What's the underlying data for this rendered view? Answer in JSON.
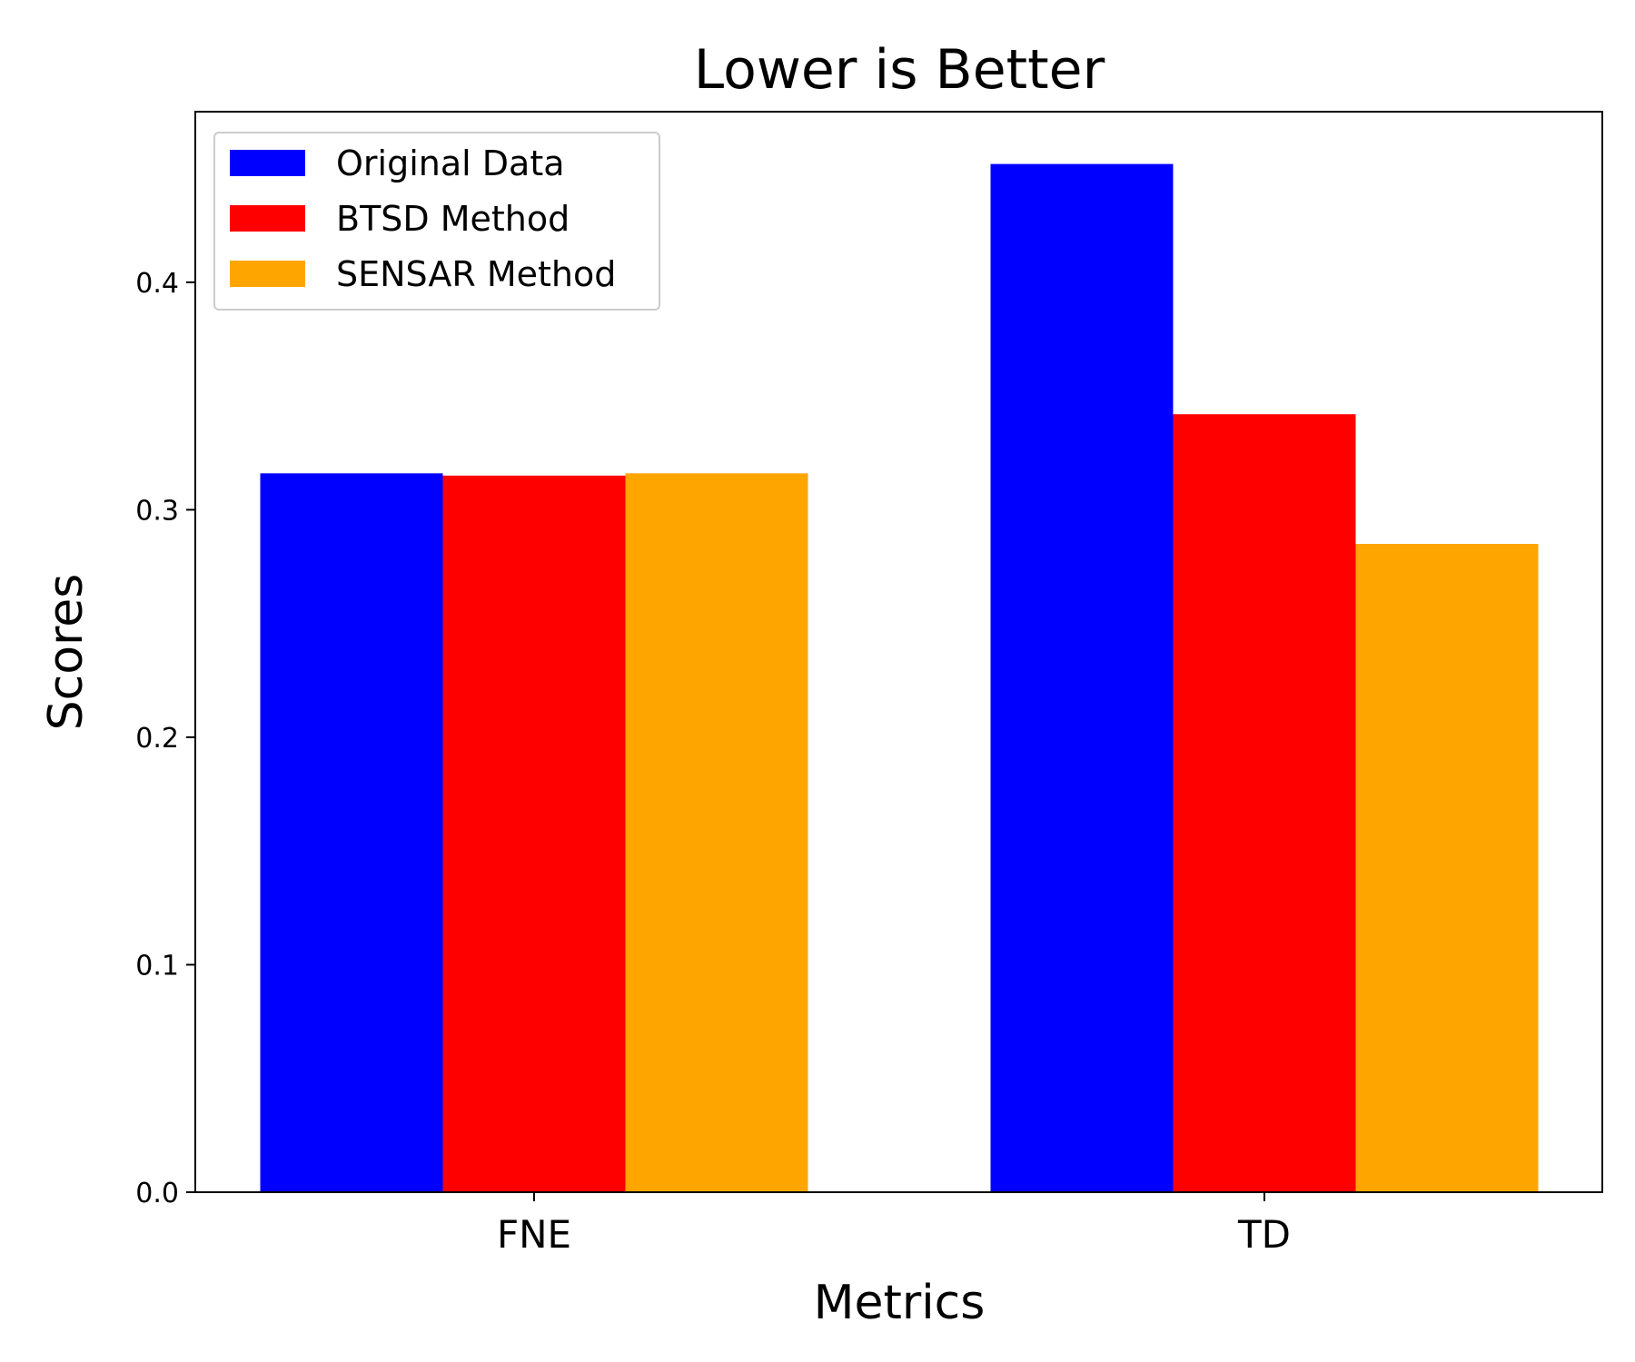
{
  "chart_data": {
    "type": "bar",
    "title": "Lower is Better",
    "xlabel": "Metrics",
    "ylabel": "Scores",
    "categories": [
      "FNE",
      "TD"
    ],
    "series": [
      {
        "name": "Original Data",
        "color": "#0000ff",
        "values": [
          0.316,
          0.452
        ]
      },
      {
        "name": "BTSD Method",
        "color": "#ff0000",
        "values": [
          0.315,
          0.342
        ]
      },
      {
        "name": "SENSAR Method",
        "color": "#ffa500",
        "values": [
          0.316,
          0.285
        ]
      }
    ],
    "ylim": [
      0,
      0.475
    ],
    "yticks": [
      "0.0",
      "0.1",
      "0.2",
      "0.3",
      "0.4"
    ],
    "grid": false,
    "legend_position": "top-left"
  }
}
